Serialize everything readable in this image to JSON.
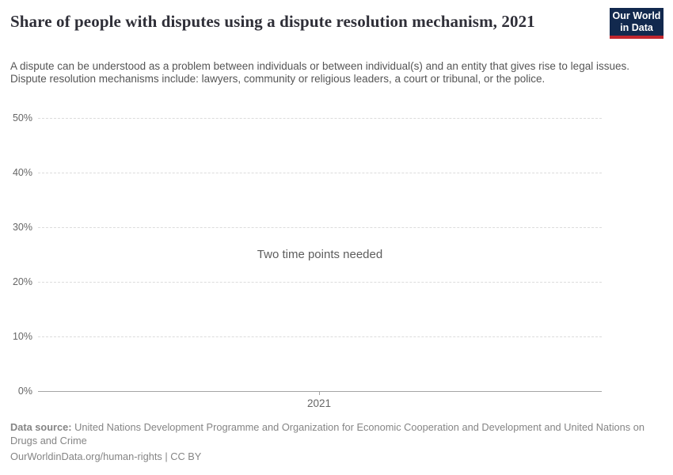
{
  "header": {
    "title": "Share of people with disputes using a dispute resolution mechanism, 2021",
    "subtitle": "A dispute can be understood as a problem between individuals or between individual(s) and an entity that gives rise to legal issues. Dispute resolution mechanisms include: lawyers, community or religious leaders, a court or tribunal, or the police.",
    "logo": {
      "line1": "Our World",
      "line2": "in Data",
      "bg_color": "#12294e",
      "stripe_color": "#c2262e"
    }
  },
  "chart_data": {
    "type": "line",
    "title": "Share of people with disputes using a dispute resolution mechanism, 2021",
    "series": [],
    "empty_state_message": "Two time points needed",
    "xlabel": "",
    "ylabel": "",
    "ylim": [
      0,
      50
    ],
    "grid": "dashed horizontal",
    "legend_position": "none",
    "y_tick_labels_top_to_bottom": [
      "50%",
      "40%",
      "30%",
      "20%",
      "10%",
      "0%"
    ],
    "x_tick_labels": [
      "2021"
    ]
  },
  "footer": {
    "datasource_label": "Data source:",
    "datasource_text": " United Nations Development Programme and Organization for Economic Cooperation and Development and United Nations on Drugs and Crime",
    "link_text": "OurWorldinData.org/human-rights | CC BY"
  }
}
